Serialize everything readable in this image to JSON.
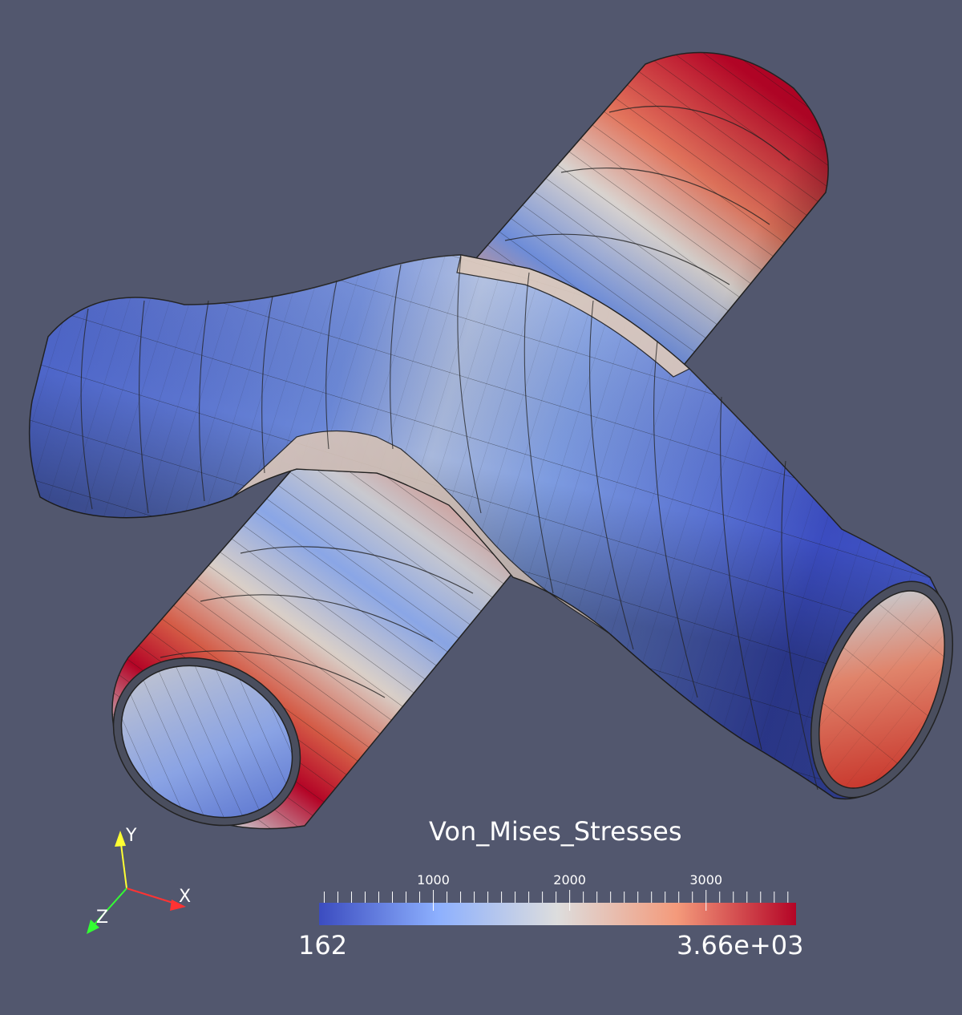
{
  "scalar_bar": {
    "title": "Von_Mises_Stresses",
    "min_label": "162",
    "max_label": "3.66e+03",
    "min_value": 162,
    "max_value": 3660,
    "ticks": [
      {
        "value": 1000,
        "label": "1000"
      },
      {
        "value": 2000,
        "label": "2000"
      },
      {
        "value": 3000,
        "label": "3000"
      }
    ],
    "colors": [
      "#3b4cc0",
      "#8db0fe",
      "#dddddd",
      "#f49a7b",
      "#b40426"
    ]
  },
  "axes": {
    "x_label": "X",
    "y_label": "Y",
    "z_label": "Z",
    "x_color": "#ff3333",
    "y_color": "#ffff33",
    "z_color": "#33ff33"
  },
  "background_color": "#52576e"
}
